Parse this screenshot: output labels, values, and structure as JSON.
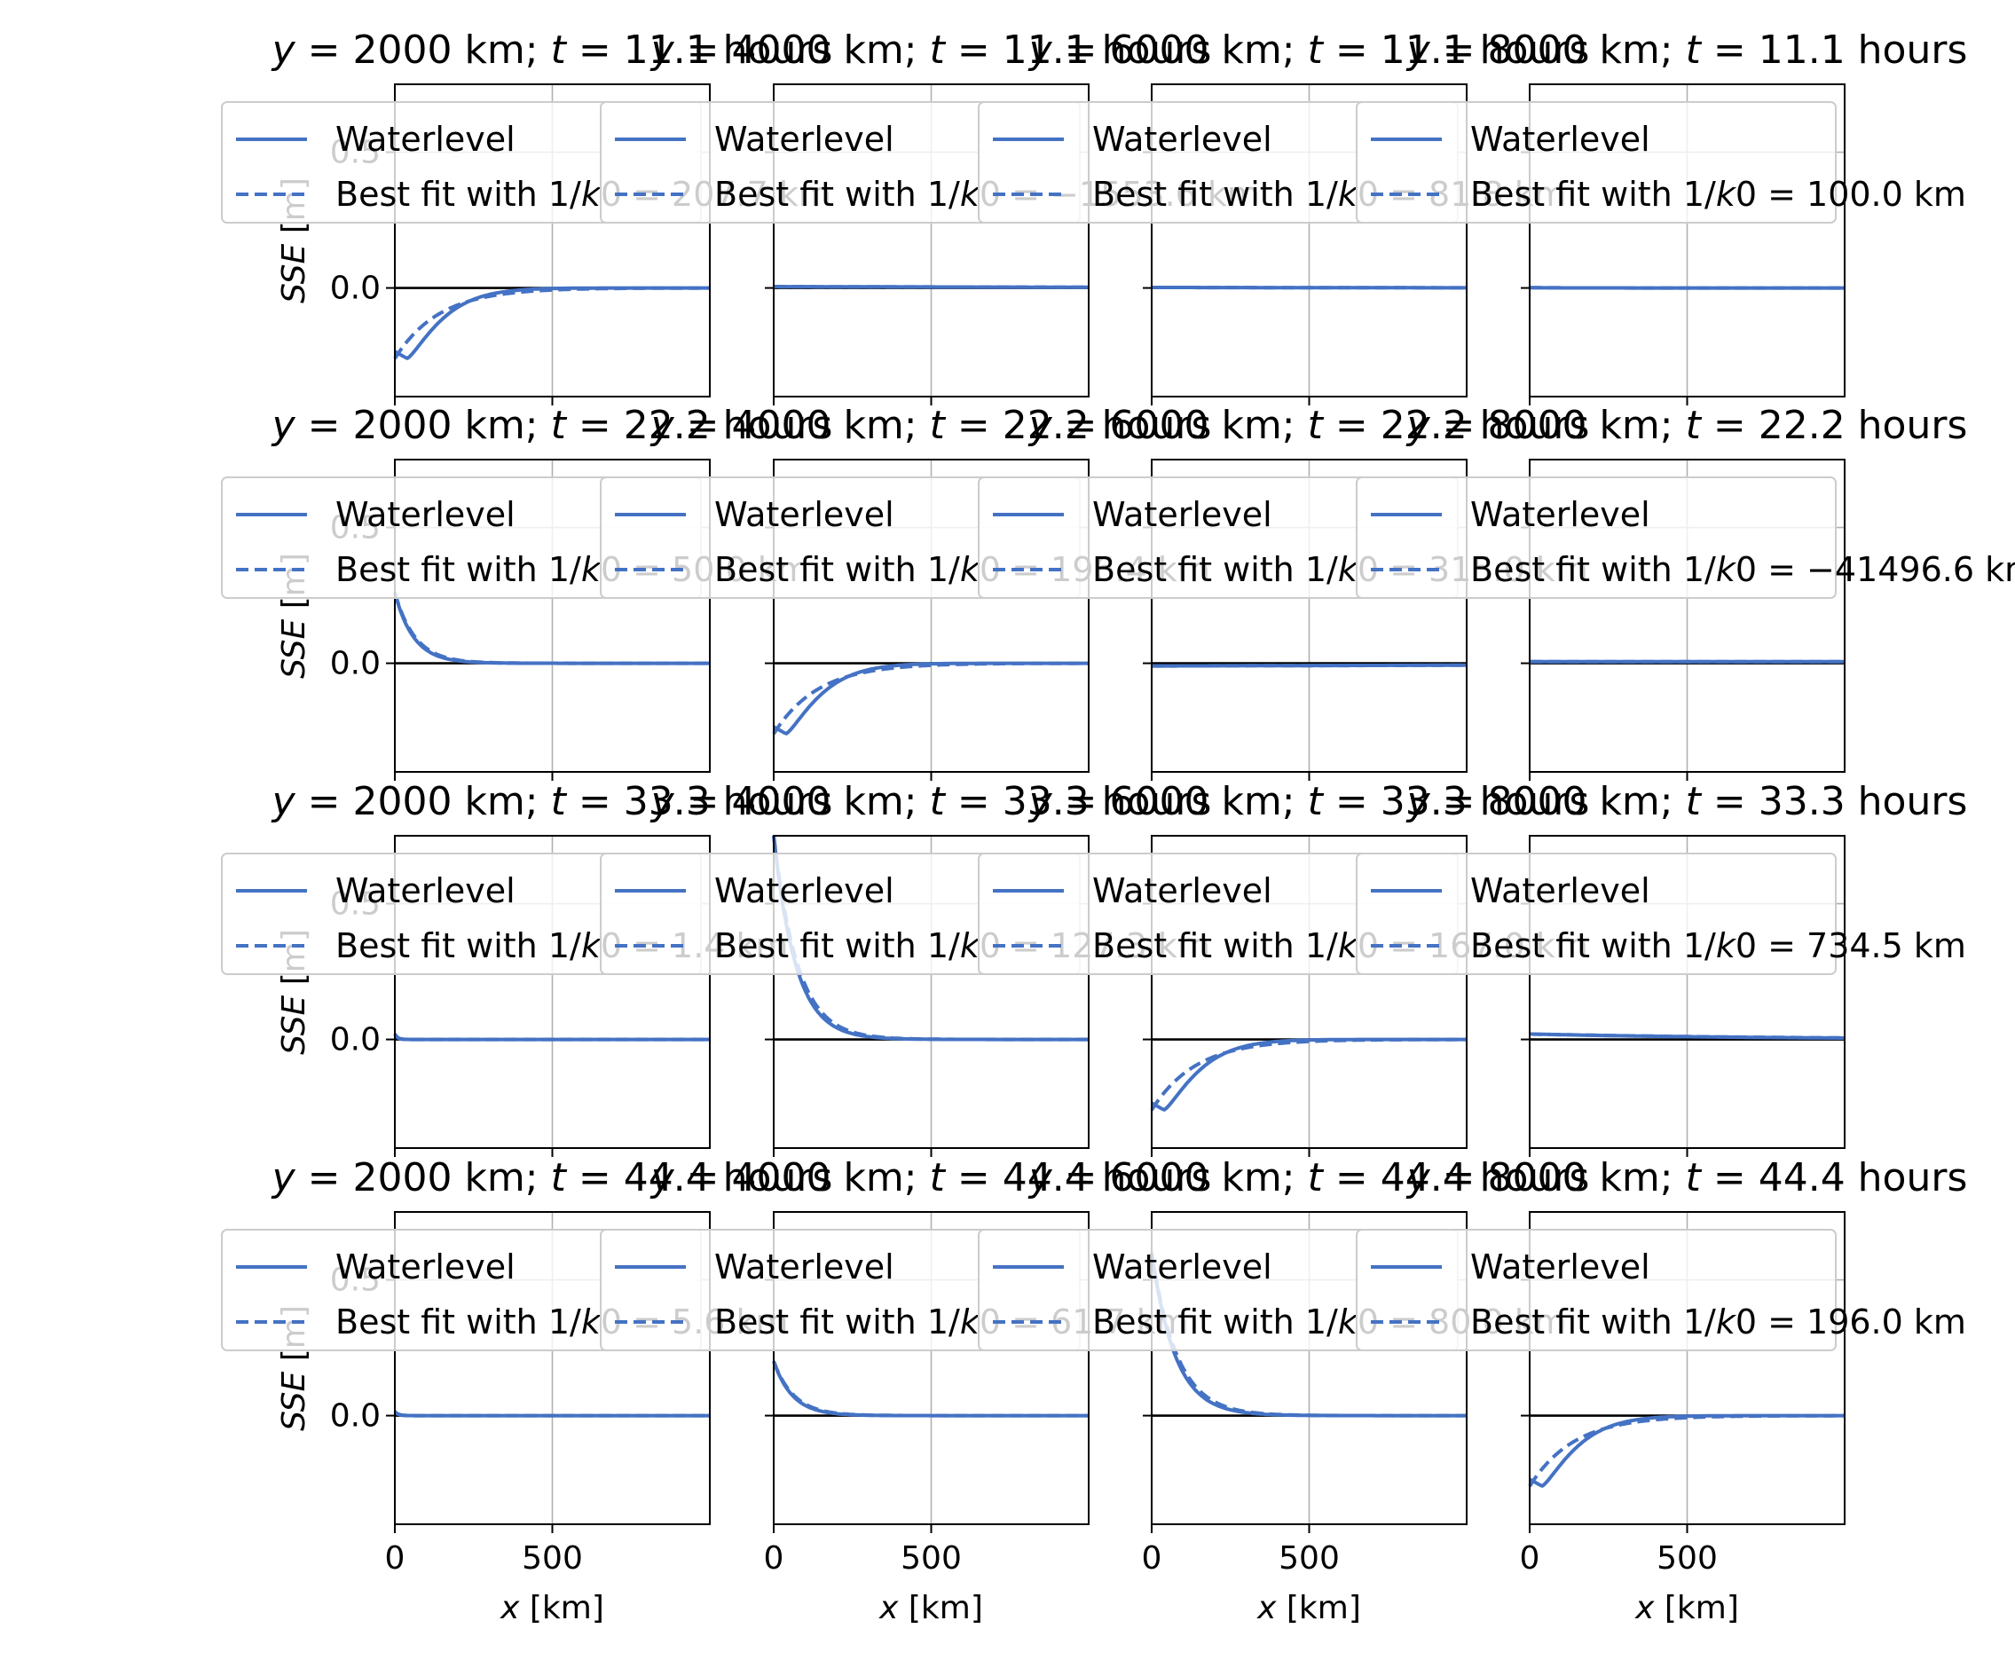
{
  "figure": {
    "line_color": "#4472c4",
    "zero_line_color": "#000000",
    "grid_color": "#b0b0b0"
  },
  "chart_data": {
    "type": "line",
    "rows": 4,
    "cols": 4,
    "xlim": [
      0,
      1000
    ],
    "ylim": [
      -0.4,
      0.75
    ],
    "xticks": [
      0,
      500
    ],
    "xtick_labels": [
      "0",
      "500"
    ],
    "yticks": [
      0.0,
      0.5
    ],
    "ytick_labels": [
      "0.0",
      "0.5"
    ],
    "xlabel_parts": [
      "x",
      " [km]"
    ],
    "ylabel_parts": [
      "SSE",
      " [m]"
    ],
    "grid": true,
    "series_names": [
      "Waterlevel",
      "Best fit with 1/k0"
    ],
    "panels": [
      {
        "row": 0,
        "col": 0,
        "title": "y = 2000 km; t = 11.1 hours",
        "y_km": 2000,
        "t_hours": 11.1,
        "amp": -0.26,
        "decay_km": 130,
        "legend": {
          "line1": "Waterlevel",
          "line2_prefix": "Best fit with 1/",
          "line2_var": "k",
          "line2_mid": "0",
          "line2_value": " = 207.7 km"
        }
      },
      {
        "row": 0,
        "col": 1,
        "title": "y = 4000 km; t = 11.1 hours",
        "y_km": 4000,
        "t_hours": 11.1,
        "amp": 0.005,
        "decay_km": 1553,
        "legend": {
          "line1": "Waterlevel",
          "line2_prefix": "Best fit with 1/",
          "line2_var": "k",
          "line2_mid": "0",
          "line2_value": " = −1553.6 km"
        }
      },
      {
        "row": 0,
        "col": 2,
        "title": "y = 6000 km; t = 11.1 hours",
        "y_km": 6000,
        "t_hours": 11.1,
        "amp": 0.002,
        "decay_km": 800,
        "legend": {
          "line1": "Waterlevel",
          "line2_prefix": "Best fit with 1/",
          "line2_var": "k",
          "line2_mid": "0",
          "line2_value": " = 81.8 km"
        }
      },
      {
        "row": 0,
        "col": 3,
        "title": "y = 8000 km; t = 11.1 hours",
        "y_km": 8000,
        "t_hours": 11.1,
        "amp": 0.001,
        "decay_km": 100,
        "legend": {
          "line1": "Waterlevel",
          "line2_prefix": "Best fit with 1/",
          "line2_var": "k",
          "line2_mid": "0",
          "line2_value": " = 100.0 km"
        }
      },
      {
        "row": 1,
        "col": 0,
        "title": "y = 2000 km; t = 22.2 hours",
        "y_km": 2000,
        "t_hours": 22.2,
        "amp": 0.26,
        "decay_km": 60,
        "legend": {
          "line1": "Waterlevel",
          "line2_prefix": "Best fit with 1/",
          "line2_var": "k",
          "line2_mid": "0",
          "line2_value": " = 50.0 km"
        }
      },
      {
        "row": 1,
        "col": 1,
        "title": "y = 4000 km; t = 22.2 hours",
        "y_km": 4000,
        "t_hours": 22.2,
        "amp": -0.26,
        "decay_km": 130,
        "legend": {
          "line1": "Waterlevel",
          "line2_prefix": "Best fit with 1/",
          "line2_var": "k",
          "line2_mid": "0",
          "line2_value": " = 196.4 km"
        }
      },
      {
        "row": 1,
        "col": 2,
        "title": "y = 6000 km; t = 22.2 hours",
        "y_km": 6000,
        "t_hours": 22.2,
        "amp": -0.01,
        "decay_km": 3000,
        "legend": {
          "line1": "Waterlevel",
          "line2_prefix": "Best fit with 1/",
          "line2_var": "k",
          "line2_mid": "0",
          "line2_value": " = 315.0 km"
        }
      },
      {
        "row": 1,
        "col": 3,
        "title": "y = 8000 km; t = 22.2 hours",
        "y_km": 8000,
        "t_hours": 22.2,
        "amp": 0.006,
        "decay_km": 41496,
        "legend": {
          "line1": "Waterlevel",
          "line2_prefix": "Best fit with 1/",
          "line2_var": "k",
          "line2_mid": "0",
          "line2_value": " = −41496.6 km"
        }
      },
      {
        "row": 2,
        "col": 0,
        "title": "y = 2000 km; t = 33.3 hours",
        "y_km": 2000,
        "t_hours": 33.3,
        "amp": 0.02,
        "decay_km": 8,
        "legend": {
          "line1": "Waterlevel",
          "line2_prefix": "Best fit with 1/",
          "line2_var": "k",
          "line2_mid": "0",
          "line2_value": " = 1.4 km"
        }
      },
      {
        "row": 2,
        "col": 1,
        "title": "y = 4000 km; t = 33.3 hours",
        "y_km": 4000,
        "t_hours": 33.3,
        "amp": 0.75,
        "decay_km": 70,
        "legend": {
          "line1": "Waterlevel",
          "line2_prefix": "Best fit with 1/",
          "line2_var": "k",
          "line2_mid": "0",
          "line2_value": " = 127.3 km"
        }
      },
      {
        "row": 2,
        "col": 2,
        "title": "y = 6000 km; t = 33.3 hours",
        "y_km": 6000,
        "t_hours": 33.3,
        "amp": -0.26,
        "decay_km": 130,
        "legend": {
          "line1": "Waterlevel",
          "line2_prefix": "Best fit with 1/",
          "line2_var": "k",
          "line2_mid": "0",
          "line2_value": " = 167.0 km"
        }
      },
      {
        "row": 2,
        "col": 3,
        "title": "y = 8000 km; t = 33.3 hours",
        "y_km": 8000,
        "t_hours": 33.3,
        "amp": 0.02,
        "decay_km": 734,
        "legend": {
          "line1": "Waterlevel",
          "line2_prefix": "Best fit with 1/",
          "line2_var": "k",
          "line2_mid": "0",
          "line2_value": " = 734.5 km"
        }
      },
      {
        "row": 3,
        "col": 0,
        "title": "y = 2000 km; t = 44.4 hours",
        "y_km": 2000,
        "t_hours": 44.4,
        "amp": 0.015,
        "decay_km": 10,
        "legend": {
          "line1": "Waterlevel",
          "line2_prefix": "Best fit with 1/",
          "line2_var": "k",
          "line2_mid": "0",
          "line2_value": " = 5.6 km"
        }
      },
      {
        "row": 3,
        "col": 1,
        "title": "y = 4000 km; t = 44.4 hours",
        "y_km": 4000,
        "t_hours": 44.4,
        "amp": 0.2,
        "decay_km": 60,
        "legend": {
          "line1": "Waterlevel",
          "line2_prefix": "Best fit with 1/",
          "line2_var": "k",
          "line2_mid": "0",
          "line2_value": " = 61.7 km"
        }
      },
      {
        "row": 3,
        "col": 2,
        "title": "y = 6000 km; t = 44.4 hours",
        "y_km": 6000,
        "t_hours": 44.4,
        "amp": 0.6,
        "decay_km": 75,
        "legend": {
          "line1": "Waterlevel",
          "line2_prefix": "Best fit with 1/",
          "line2_var": "k",
          "line2_mid": "0",
          "line2_value": " = 80.0 km"
        }
      },
      {
        "row": 3,
        "col": 3,
        "title": "y = 8000 km; t = 44.4 hours",
        "y_km": 8000,
        "t_hours": 44.4,
        "amp": -0.26,
        "decay_km": 130,
        "legend": {
          "line1": "Waterlevel",
          "line2_prefix": "Best fit with 1/",
          "line2_var": "k",
          "line2_mid": "0",
          "line2_value": " = 196.0 km"
        }
      }
    ]
  }
}
